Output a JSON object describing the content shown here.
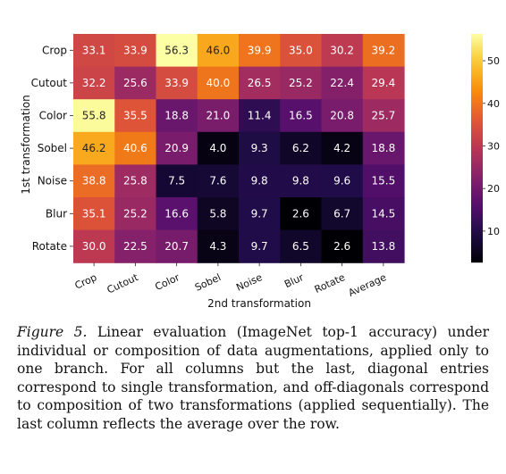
{
  "chart_data": {
    "type": "heatmap",
    "xlabel": "2nd transformation",
    "ylabel": "1st transformation",
    "x_categories": [
      "Crop",
      "Cutout",
      "Color",
      "Sobel",
      "Noise",
      "Blur",
      "Rotate",
      "Average"
    ],
    "y_categories": [
      "Crop",
      "Cutout",
      "Color",
      "Sobel",
      "Noise",
      "Blur",
      "Rotate"
    ],
    "values": [
      [
        33.1,
        33.9,
        56.3,
        46.0,
        39.9,
        35.0,
        30.2,
        39.2
      ],
      [
        32.2,
        25.6,
        33.9,
        40.0,
        26.5,
        25.2,
        22.4,
        29.4
      ],
      [
        55.8,
        35.5,
        18.8,
        21.0,
        11.4,
        16.5,
        20.8,
        25.7
      ],
      [
        46.2,
        40.6,
        20.9,
        4.0,
        9.3,
        6.2,
        4.2,
        18.8
      ],
      [
        38.8,
        25.8,
        7.5,
        7.6,
        9.8,
        9.8,
        9.6,
        15.5
      ],
      [
        35.1,
        25.2,
        16.6,
        5.8,
        9.7,
        2.6,
        6.7,
        14.5
      ],
      [
        30.0,
        22.5,
        20.7,
        4.3,
        9.7,
        6.5,
        2.6,
        13.8
      ]
    ],
    "labels": [
      [
        "33.1",
        "33.9",
        "56.3",
        "46.0",
        "39.9",
        "35.0",
        "30.2",
        "39.2"
      ],
      [
        "32.2",
        "25.6",
        "33.9",
        "40.0",
        "26.5",
        "25.2",
        "22.4",
        "29.4"
      ],
      [
        "55.8",
        "35.5",
        "18.8",
        "21.0",
        "11.4",
        "16.5",
        "20.8",
        "25.7"
      ],
      [
        "46.2",
        "40.6",
        "20.9",
        "4.0",
        "9.3",
        "6.2",
        "4.2",
        "18.8"
      ],
      [
        "38.8",
        "25.8",
        "7.5",
        "7.6",
        "9.8",
        "9.8",
        "9.6",
        "15.5"
      ],
      [
        "35.1",
        "25.2",
        "16.6",
        "5.8",
        "9.7",
        "2.6",
        "6.7",
        "14.5"
      ],
      [
        "30.0",
        "22.5",
        "20.7",
        "4.3",
        "9.7",
        "6.5",
        "2.6",
        "13.8"
      ]
    ],
    "colormap": "inferno",
    "vmin": 2.6,
    "vmax": 56.3,
    "colorbar": {
      "ticks": [
        10,
        20,
        30,
        40,
        50
      ],
      "tick_labels": [
        "10",
        "20",
        "30",
        "40",
        "50"
      ],
      "placement": "right"
    },
    "grid": false,
    "legend": "none"
  },
  "caption": {
    "figure_label": "Figure 5.",
    "text": "Linear evaluation (ImageNet top-1 accuracy) under individual or composition of data augmentations, applied only to one branch. For all columns but the last, diagonal entries correspond to single transformation, and off-diagonals correspond to composition of two transformations (applied sequentially). The last column reflects the average over the row."
  }
}
